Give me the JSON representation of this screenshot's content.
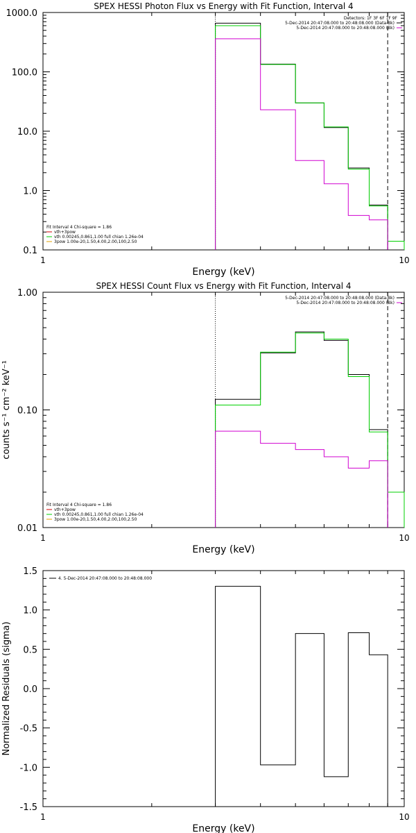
{
  "chart_data": [
    {
      "type": "line",
      "title": "SPEX HESSI Photon Flux vs Energy with Fit Function, Interval 4",
      "xlabel": "Energy (keV)",
      "ylabel": "",
      "xscale": "log",
      "yscale": "log",
      "xlim": [
        1,
        10
      ],
      "ylim": [
        0.1,
        1000
      ],
      "x_ticks": [
        {
          "v": 1,
          "label": "1"
        },
        {
          "v": 10,
          "label": "10"
        }
      ],
      "y_ticks": [
        {
          "v": 0.1,
          "label": "0.1"
        },
        {
          "v": 1,
          "label": "1.0"
        },
        {
          "v": 10,
          "label": "10.0"
        },
        {
          "v": 100,
          "label": "100.0"
        },
        {
          "v": 1000,
          "label": "1000.0"
        }
      ],
      "bin_edges": [
        3,
        4,
        5,
        6,
        7,
        8,
        9,
        10
      ],
      "series": [
        {
          "color": "#000000",
          "values": [
            660,
            135,
            30,
            11.5,
            2.4,
            0.57,
            null
          ]
        },
        {
          "color": "#00d000",
          "values": [
            600,
            133,
            30,
            11.8,
            2.3,
            0.55,
            0.14
          ]
        },
        {
          "color": "#d000d0",
          "values": [
            360,
            23,
            3.2,
            1.3,
            0.38,
            0.32,
            null
          ]
        }
      ],
      "vlines": [
        {
          "x": 3,
          "style": "dotted",
          "color": "#000000"
        },
        {
          "x": 9,
          "style": "dashed",
          "color": "#000000"
        }
      ],
      "legend_topright": {
        "header": "Detectors: 1F 3F 6F 7F 9F",
        "items": [
          {
            "text": "5-Dec-2014 20:47:08.000 to 20:48:08.000 (Data-Bk)",
            "color": "#000000"
          },
          {
            "text": "5-Dec-2014 20:47:08.000 to 20:48:08.000 (Bk)",
            "color": "#d000d0"
          }
        ]
      },
      "legend_bottomleft": {
        "header": "Fit Interval  4   Chi-square = 1.86",
        "items": [
          {
            "text": "vth+3pow",
            "color": "#d00000"
          },
          {
            "text": "vth 0.00245,0.861,1.00  full chian 1.26e-04",
            "color": "#00d000"
          },
          {
            "text": "3pow 1.00e-20,1.50,4.00,2.00,100,2.50",
            "color": "#e0a000"
          }
        ]
      }
    },
    {
      "type": "line",
      "title": "SPEX HESSI Count Flux vs Energy with Fit Function, Interval 4",
      "xlabel": "Energy (keV)",
      "ylabel": "counts s⁻¹ cm⁻² keV⁻¹",
      "xscale": "log",
      "yscale": "log",
      "xlim": [
        1,
        10
      ],
      "ylim": [
        0.01,
        1
      ],
      "x_ticks": [
        {
          "v": 1,
          "label": "1"
        },
        {
          "v": 10,
          "label": "10"
        }
      ],
      "y_ticks": [
        {
          "v": 0.01,
          "label": "0.01"
        },
        {
          "v": 0.1,
          "label": "0.10"
        },
        {
          "v": 1,
          "label": "1.00"
        }
      ],
      "bin_edges": [
        3,
        4,
        5,
        6,
        7,
        8,
        9,
        10
      ],
      "series": [
        {
          "color": "#000000",
          "values": [
            0.123,
            0.305,
            0.46,
            0.39,
            0.2,
            0.068,
            null
          ]
        },
        {
          "color": "#00d000",
          "values": [
            0.11,
            0.31,
            0.45,
            0.4,
            0.192,
            0.065,
            0.02
          ]
        },
        {
          "color": "#d000d0",
          "values": [
            0.066,
            0.052,
            0.046,
            0.04,
            0.032,
            0.037,
            null
          ]
        }
      ],
      "vlines": [
        {
          "x": 3,
          "style": "dotted",
          "color": "#000000"
        },
        {
          "x": 9,
          "style": "dashed",
          "color": "#000000"
        }
      ],
      "legend_topright": {
        "header": "",
        "items": [
          {
            "text": "5-Dec-2014 20:47:08.000 to 20:48:08.000 (Data-Bk)",
            "color": "#000000"
          },
          {
            "text": "5-Dec-2014 20:47:08.000 to 20:48:08.000 (Bk)",
            "color": "#d000d0"
          }
        ]
      },
      "legend_bottomleft": {
        "header": "Fit Interval  4   Chi-square = 1.86",
        "items": [
          {
            "text": "vth+3pow",
            "color": "#d00000"
          },
          {
            "text": "vth 0.00245,0.861,1.00  full chian 1.26e-04",
            "color": "#00d000"
          },
          {
            "text": "3pow 1.00e-20,1.50,4.00,2.00,100,2.50",
            "color": "#e0a000"
          }
        ]
      }
    },
    {
      "type": "line",
      "title": "",
      "xlabel": "Energy (keV)",
      "ylabel": "Normalized Residuals (sigma)",
      "xscale": "log",
      "yscale": "linear",
      "xlim": [
        1,
        10
      ],
      "ylim": [
        -1.5,
        1.5
      ],
      "x_ticks": [
        {
          "v": 1,
          "label": "1"
        },
        {
          "v": 10,
          "label": "10"
        }
      ],
      "y_ticks": [
        {
          "v": -1.5,
          "label": "-1.5"
        },
        {
          "v": -1.0,
          "label": "-1.0"
        },
        {
          "v": -0.5,
          "label": "-0.5"
        },
        {
          "v": 0.0,
          "label": "0.0"
        },
        {
          "v": 0.5,
          "label": "0.5"
        },
        {
          "v": 1.0,
          "label": "1.0"
        },
        {
          "v": 1.5,
          "label": "1.5"
        }
      ],
      "bin_edges": [
        3,
        4,
        5,
        6,
        7,
        8,
        9
      ],
      "series": [
        {
          "color": "#000000",
          "values": [
            1.3,
            -0.97,
            0.7,
            -1.12,
            0.71,
            0.43
          ]
        }
      ],
      "vlines": [],
      "legend_topright": {
        "header": "",
        "items": []
      },
      "legend_bottomleft": {
        "header": "",
        "items": []
      },
      "legend_topleft": {
        "items": [
          {
            "text": "4.  5-Dec-2014 20:47:08.000 to 20:48:08.000",
            "color": "#000000"
          }
        ]
      }
    }
  ]
}
